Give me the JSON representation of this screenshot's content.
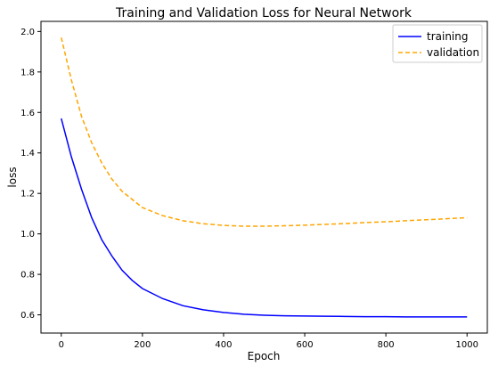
{
  "chart_data": {
    "type": "line",
    "title": "Training and Validation Loss for Neural Network",
    "xlabel": "Epoch",
    "ylabel": "loss",
    "xlim": [
      -50,
      1050
    ],
    "ylim": [
      0.51,
      2.05
    ],
    "xticks": [
      0,
      200,
      400,
      600,
      800,
      1000
    ],
    "yticks": [
      0.6,
      0.8,
      1.0,
      1.2,
      1.4,
      1.6,
      1.8,
      2.0
    ],
    "xtick_labels": [
      "0",
      "200",
      "400",
      "600",
      "800",
      "1000"
    ],
    "ytick_labels": [
      "0.6",
      "0.8",
      "1.0",
      "1.2",
      "1.4",
      "1.6",
      "1.8",
      "2.0"
    ],
    "grid": false,
    "legend_position": "top-right",
    "x": [
      0,
      25,
      50,
      75,
      100,
      125,
      150,
      175,
      200,
      250,
      300,
      350,
      400,
      450,
      500,
      550,
      600,
      650,
      700,
      750,
      800,
      850,
      900,
      950,
      1000
    ],
    "series": [
      {
        "name": "training",
        "color": "#0000ff",
        "style": "solid",
        "values": [
          1.57,
          1.38,
          1.22,
          1.08,
          0.97,
          0.89,
          0.82,
          0.77,
          0.73,
          0.68,
          0.645,
          0.625,
          0.612,
          0.603,
          0.598,
          0.595,
          0.594,
          0.593,
          0.592,
          0.591,
          0.591,
          0.59,
          0.59,
          0.59,
          0.59
        ]
      },
      {
        "name": "validation",
        "color": "#ffa500",
        "style": "dashed",
        "values": [
          1.97,
          1.76,
          1.58,
          1.45,
          1.35,
          1.27,
          1.21,
          1.17,
          1.13,
          1.09,
          1.065,
          1.05,
          1.042,
          1.038,
          1.038,
          1.04,
          1.043,
          1.047,
          1.051,
          1.056,
          1.06,
          1.065,
          1.07,
          1.075,
          1.08
        ]
      }
    ]
  }
}
